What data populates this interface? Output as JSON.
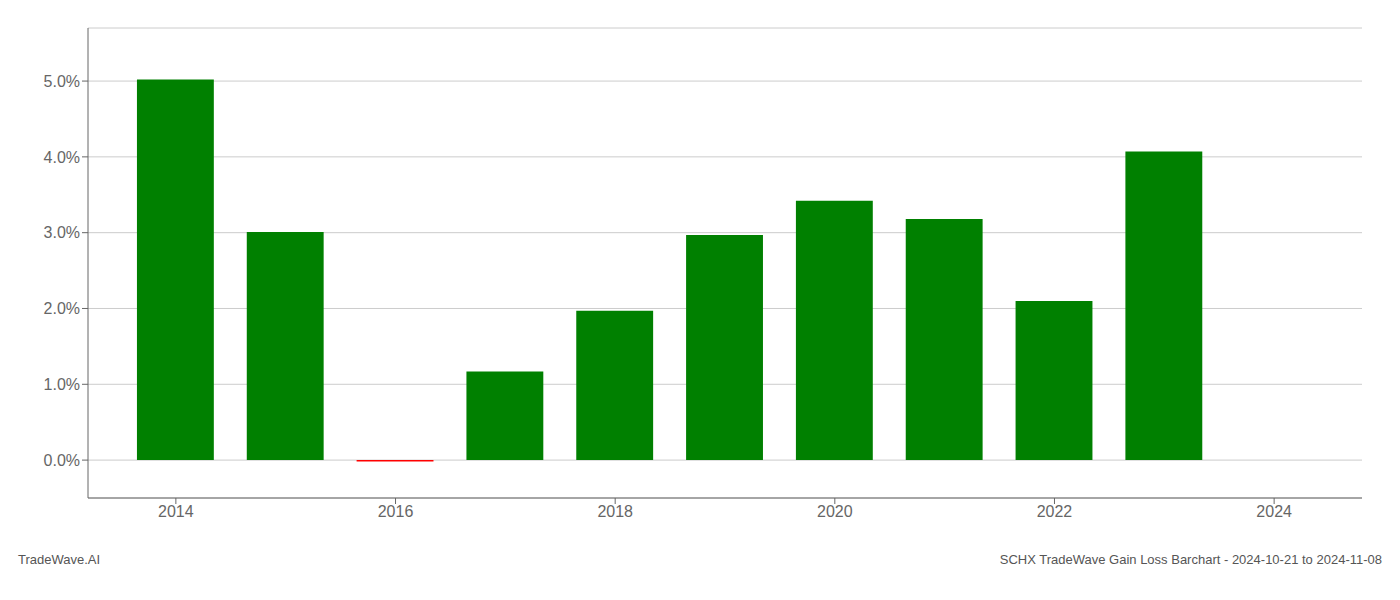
{
  "chart_data": {
    "type": "bar",
    "x": [
      2014,
      2015,
      2016,
      2017,
      2018,
      2019,
      2020,
      2021,
      2022,
      2023
    ],
    "values": [
      0.0502,
      0.0301,
      -0.0002,
      0.0117,
      0.0197,
      0.0297,
      0.0342,
      0.0318,
      0.021,
      0.0407
    ],
    "colors": [
      "#008000",
      "#008000",
      "#ff0000",
      "#008000",
      "#008000",
      "#008000",
      "#008000",
      "#008000",
      "#008000",
      "#008000"
    ],
    "xlim": [
      2013.2,
      2024.8
    ],
    "xticks": [
      2014,
      2016,
      2018,
      2020,
      2022,
      2024
    ],
    "ylim": [
      -0.005,
      0.057
    ],
    "yticks": [
      {
        "value": 0.0,
        "label": "0.0%"
      },
      {
        "value": 0.01,
        "label": "1.0%"
      },
      {
        "value": 0.02,
        "label": "2.0%"
      },
      {
        "value": 0.03,
        "label": "3.0%"
      },
      {
        "value": 0.04,
        "label": "4.0%"
      },
      {
        "value": 0.05,
        "label": "5.0%"
      }
    ],
    "grid": true,
    "annotations": [
      "TradeWave.AI",
      "SCHX TradeWave Gain Loss Barchart - 2024-10-21 to 2024-11-08"
    ]
  }
}
